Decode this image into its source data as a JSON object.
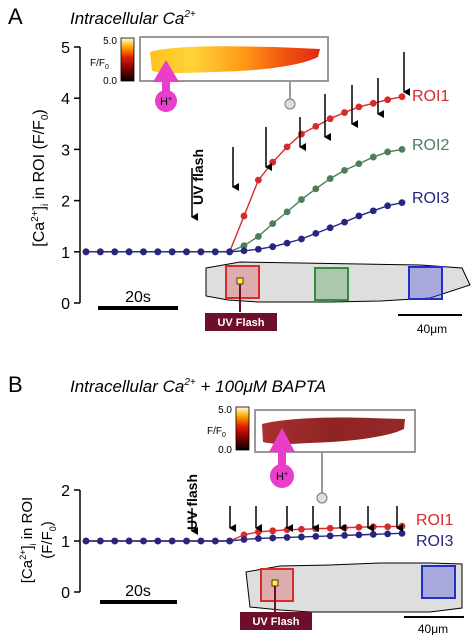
{
  "panelA": {
    "letter": "A",
    "title_main": "Intracellular Ca",
    "title_sup": "2+",
    "ylabel": "[Ca",
    "ylabel_sup": "2+",
    "ylabel_rest": "]",
    "ylabel_sub": "i",
    "ylabel_tail": " in ROI (F/F",
    "ylabel_sub0": "0",
    "ylabel_close": ")",
    "colorbar_max": "5.0",
    "colorbar_min": "0.0",
    "colorbar_label": "F/F",
    "colorbar_label_sub": "0",
    "proton_label": "H",
    "proton_sup": "+",
    "uv_label": "UV flash",
    "uv_box_label": "UV Flash",
    "scalebar_time": "20s",
    "scalebar_space": "40μm"
  },
  "panelB": {
    "letter": "B",
    "title_main": "Intracellular Ca",
    "title_sup": "2+",
    "title_tail": " + 100μM BAPTA",
    "ylabel_line1a": "[Ca",
    "ylabel_line1sup": "2+",
    "ylabel_line1b": "]",
    "ylabel_line1sub": "i",
    "ylabel_line1c": " in ROI",
    "ylabel_line2a": "(F/F",
    "ylabel_line2sub": "0",
    "ylabel_line2b": ")",
    "colorbar_max": "5.0",
    "colorbar_min": "0.0",
    "colorbar_label": "F/F",
    "colorbar_label_sub": "0",
    "proton_label": "H",
    "proton_sup": "+",
    "uv_label": "UV flash",
    "uv_box_label": "UV Flash",
    "scalebar_time": "20s",
    "scalebar_space": "40μm"
  },
  "colors": {
    "roi1": "#d62b2b",
    "roi2": "#4e7d5c",
    "roi3": "#262680",
    "arrow_magenta": "#e83ec9",
    "uv_box": "#6e0f2a",
    "cell_fill": "#dedede"
  },
  "chart_data": [
    {
      "type": "line",
      "panel": "A",
      "xlabel": "",
      "ylabel": "[Ca2+]i in ROI (F/F0)",
      "ylim": [
        0,
        5
      ],
      "yticks": [
        0,
        1,
        2,
        3,
        4,
        5
      ],
      "x": [
        0,
        3,
        6,
        9,
        12,
        15,
        18,
        21,
        24,
        27,
        30,
        33,
        36,
        39,
        42,
        45,
        48,
        51,
        54,
        57,
        60,
        63,
        66
      ],
      "series": [
        {
          "name": "ROI1",
          "values": [
            1,
            1,
            1,
            1,
            1,
            1,
            1,
            1,
            1,
            1,
            1,
            1.7,
            2.4,
            2.75,
            3.05,
            3.3,
            3.45,
            3.6,
            3.72,
            3.83,
            3.9,
            3.97,
            4.03
          ]
        },
        {
          "name": "ROI2",
          "values": [
            1,
            1,
            1,
            1,
            1,
            1,
            1,
            1,
            1,
            1,
            1,
            1.12,
            1.3,
            1.55,
            1.78,
            2.02,
            2.23,
            2.43,
            2.59,
            2.72,
            2.85,
            2.95,
            3.0
          ]
        },
        {
          "name": "ROI3",
          "values": [
            1,
            1,
            1,
            1,
            1,
            1,
            1,
            1,
            1,
            1,
            1,
            1.02,
            1.05,
            1.1,
            1.17,
            1.25,
            1.36,
            1.47,
            1.58,
            1.7,
            1.8,
            1.9,
            1.96
          ]
        }
      ]
    },
    {
      "type": "line",
      "panel": "B",
      "xlabel": "",
      "ylabel": "[Ca2+]i in ROI (F/F0)",
      "ylim": [
        0,
        2
      ],
      "yticks": [
        0,
        1,
        2
      ],
      "x": [
        0,
        3,
        6,
        9,
        12,
        15,
        18,
        21,
        24,
        27,
        30,
        33,
        36,
        39,
        42,
        45,
        48,
        51,
        54,
        57,
        60,
        63,
        66
      ],
      "series": [
        {
          "name": "ROI1",
          "values": [
            1,
            1,
            1,
            1,
            1,
            1,
            1,
            1,
            1,
            1,
            1,
            1.12,
            1.18,
            1.2,
            1.22,
            1.23,
            1.24,
            1.25,
            1.26,
            1.27,
            1.28,
            1.28,
            1.29
          ]
        },
        {
          "name": "ROI3",
          "values": [
            1,
            1,
            1,
            1,
            1,
            1,
            1,
            1,
            1,
            1,
            1,
            1.03,
            1.05,
            1.06,
            1.07,
            1.08,
            1.09,
            1.1,
            1.11,
            1.12,
            1.13,
            1.14,
            1.15
          ]
        }
      ]
    }
  ]
}
